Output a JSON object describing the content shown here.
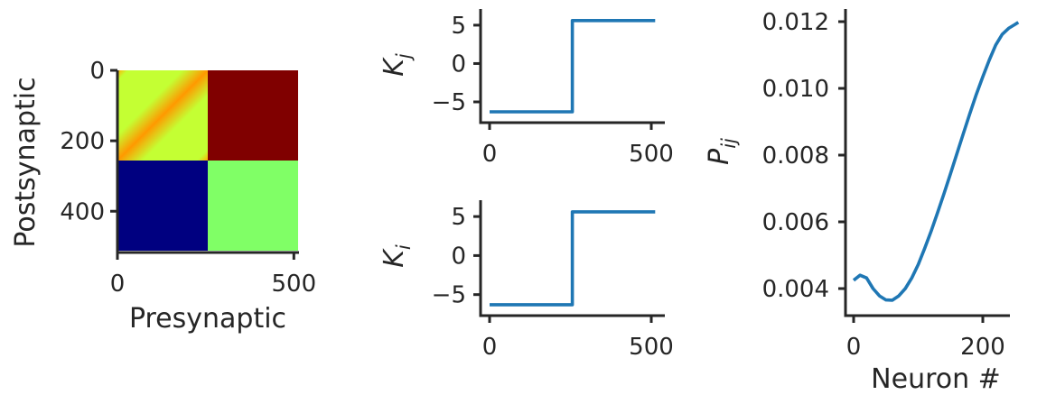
{
  "colors": {
    "axis": "#262626",
    "line": "#1f77b4",
    "block_top_left_base": "#c4ff33",
    "block_top_left_diag": "#ff9900",
    "block_top_left_corner": "#ffb000",
    "block_top_right": "#800000",
    "block_bottom_left": "#000080",
    "block_bottom_right": "#80ff66"
  },
  "chart_data": [
    {
      "type": "heatmap",
      "title": "",
      "xlabel": "Presynaptic",
      "ylabel": "Postsynaptic",
      "xlim": [
        0,
        512
      ],
      "ylim": [
        512,
        0
      ],
      "xticks": [
        0,
        500
      ],
      "yticks": [
        0,
        200,
        400
      ],
      "colormap": "jet",
      "blocks": [
        {
          "name": "top-left",
          "x": [
            0,
            256
          ],
          "y": [
            0,
            256
          ],
          "pattern": "diagonal band",
          "colors": [
            "yellow-green",
            "orange"
          ]
        },
        {
          "name": "top-right",
          "x": [
            256,
            512
          ],
          "y": [
            0,
            256
          ],
          "color": "dark red"
        },
        {
          "name": "bottom-left",
          "x": [
            0,
            256
          ],
          "y": [
            256,
            512
          ],
          "color": "dark blue"
        },
        {
          "name": "bottom-right",
          "x": [
            256,
            512
          ],
          "y": [
            256,
            512
          ],
          "color": "light green"
        }
      ]
    },
    {
      "type": "line",
      "title": "",
      "xlabel": "",
      "ylabel": "K",
      "ylabel_sub": "j",
      "xlim": [
        -10,
        540
      ],
      "ylim": [
        -7,
        6.4
      ],
      "xticks": [
        0,
        500
      ],
      "yticks": [
        -5,
        0,
        5
      ],
      "series": [
        {
          "x": [
            0,
            256,
            256,
            512
          ],
          "y": [
            -6.3,
            -6.3,
            5.6,
            5.6
          ]
        }
      ]
    },
    {
      "type": "line",
      "title": "",
      "xlabel": "",
      "ylabel": "K",
      "ylabel_sub": "i",
      "xlim": [
        -10,
        540
      ],
      "ylim": [
        -7,
        6.4
      ],
      "xticks": [
        0,
        500
      ],
      "yticks": [
        -5,
        0,
        5
      ],
      "series": [
        {
          "x": [
            0,
            256,
            256,
            512
          ],
          "y": [
            -6.3,
            -6.3,
            5.6,
            5.6
          ]
        }
      ]
    },
    {
      "type": "line",
      "title": "",
      "xlabel": "Neuron #",
      "ylabel": "P",
      "ylabel_sub": "ij",
      "xlim": [
        -10,
        270
      ],
      "ylim": [
        0.0032,
        0.0124
      ],
      "xticks": [
        0,
        200
      ],
      "yticks": [
        0.004,
        0.006,
        0.008,
        0.01,
        0.012
      ],
      "ytick_labels": [
        "0.004",
        "0.006",
        "0.008",
        "0.010",
        "0.012"
      ],
      "series": [
        {
          "x": [
            0,
            10,
            20,
            30,
            40,
            50,
            60,
            70,
            80,
            90,
            100,
            110,
            120,
            130,
            140,
            150,
            160,
            170,
            180,
            190,
            200,
            210,
            220,
            230,
            240,
            250,
            255
          ],
          "y": [
            0.00425,
            0.0044,
            0.00432,
            0.004,
            0.00378,
            0.00366,
            0.00365,
            0.00378,
            0.004,
            0.00432,
            0.00472,
            0.0052,
            0.00572,
            0.00628,
            0.00685,
            0.00745,
            0.00805,
            0.00865,
            0.00925,
            0.00982,
            0.01035,
            0.01085,
            0.0113,
            0.01162,
            0.0118,
            0.01192,
            0.01198
          ]
        }
      ]
    }
  ]
}
